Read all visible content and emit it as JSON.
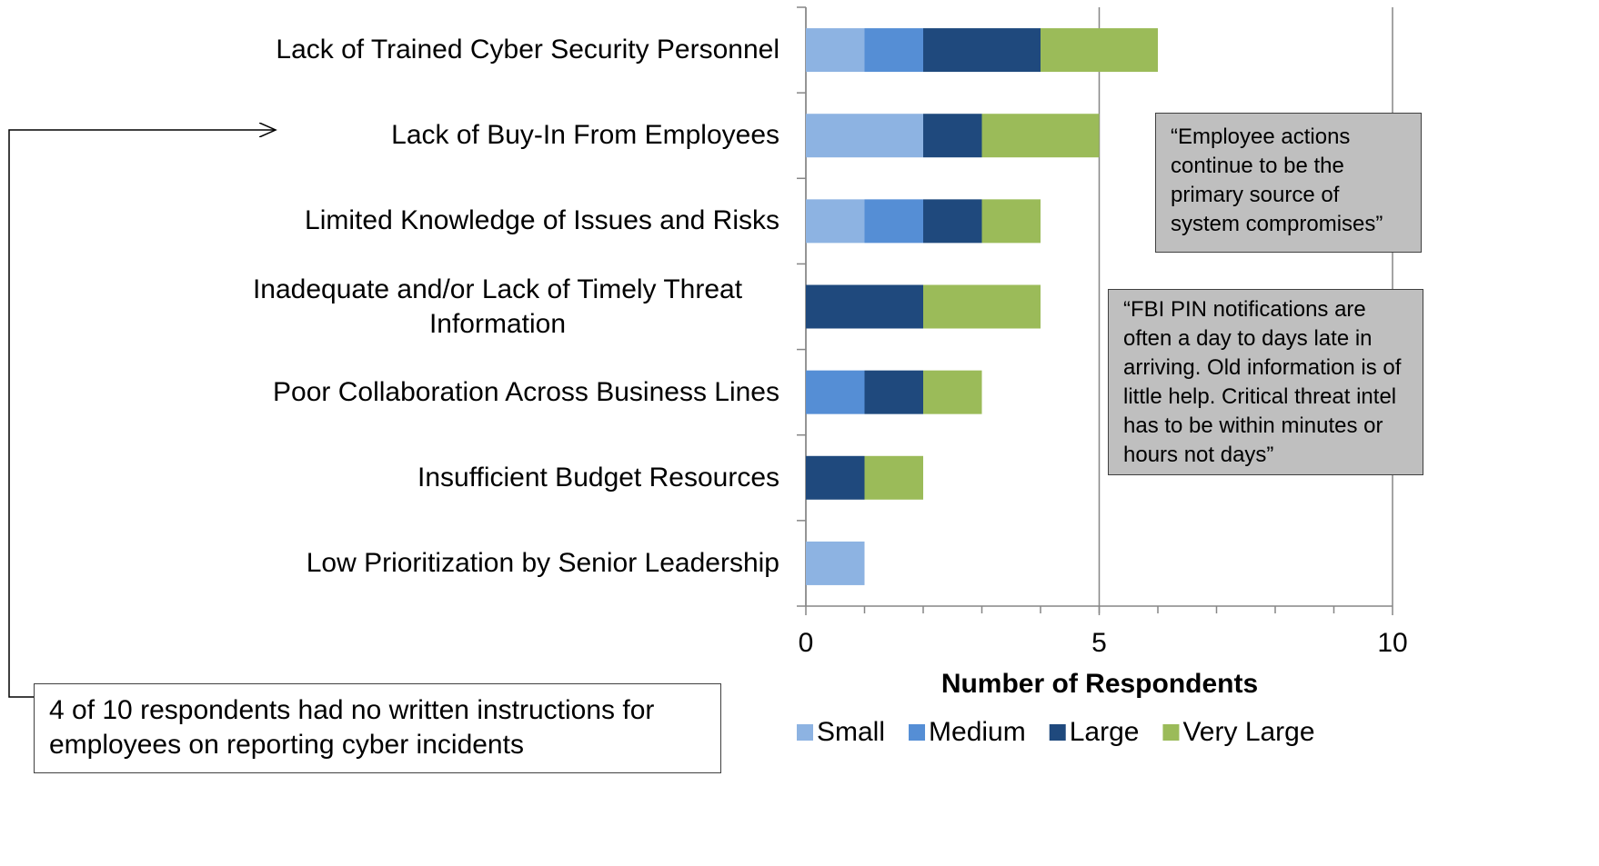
{
  "chart_data": {
    "type": "stacked_barh",
    "categories": [
      "Lack of Trained Cyber Security Personnel",
      "Lack of Buy-In From Employees",
      "Limited Knowledge of Issues and Risks",
      "Inadequate and/or Lack of Timely Threat Information",
      "Poor Collaboration Across Business Lines",
      "Insufficient Budget Resources",
      "Low Prioritization by Senior Leadership"
    ],
    "series": [
      {
        "name": "Small",
        "color": "#8db3e2",
        "values": [
          1,
          2,
          1,
          0,
          0,
          0,
          1
        ]
      },
      {
        "name": "Medium",
        "color": "#558ed5",
        "values": [
          1,
          0,
          1,
          0,
          1,
          0,
          0
        ]
      },
      {
        "name": "Large",
        "color": "#1f497d",
        "values": [
          2,
          1,
          1,
          2,
          1,
          1,
          0
        ]
      },
      {
        "name": "Very Large",
        "color": "#9bbb59",
        "values": [
          2,
          2,
          1,
          2,
          1,
          1,
          0
        ]
      }
    ],
    "x_label": "Number of Respondents",
    "xlim": [
      0,
      10
    ],
    "xticks": [
      0,
      5,
      10
    ],
    "grid": true,
    "legend": "bottom",
    "annotations": [
      "“Employee actions continue to be the primary source of system compromises”",
      "“FBI PIN notifications are often a day to days late in arriving. Old information is of little help.  Critical threat intel has to be within minutes or hours not days”",
      "4 of 10 respondents had no written instructions for employees on reporting cyber incidents"
    ]
  }
}
